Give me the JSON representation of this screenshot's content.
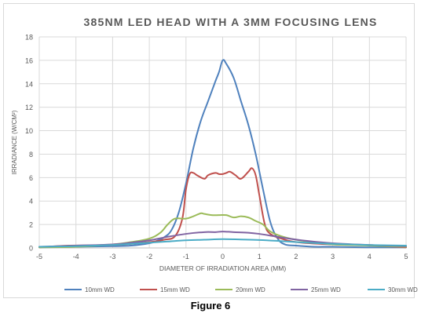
{
  "figure": {
    "caption": "Figure 6"
  },
  "chart_data": {
    "type": "line",
    "title": "385NM LED HEAD WITH A 3MM FOCUSING LENS",
    "xlabel": "DIAMETER OF IRRADIATION AREA (MM)",
    "ylabel": "IRRADIANCE (W/CM²)",
    "xlim": [
      -5,
      5
    ],
    "ylim": [
      0,
      18
    ],
    "xticks": [
      -5,
      -4,
      -3,
      -2,
      -1,
      0,
      1,
      2,
      3,
      4,
      5
    ],
    "yticks": [
      0,
      2,
      4,
      6,
      8,
      10,
      12,
      14,
      16,
      18
    ],
    "grid": true,
    "legend_position": "bottom",
    "series": [
      {
        "name": "10mm WD",
        "color": "#4f81bd",
        "points": [
          [
            -5,
            0.05
          ],
          [
            -4,
            0.1
          ],
          [
            -3,
            0.15
          ],
          [
            -2.5,
            0.2
          ],
          [
            -2,
            0.4
          ],
          [
            -1.8,
            0.6
          ],
          [
            -1.6,
            0.9
          ],
          [
            -1.4,
            1.5
          ],
          [
            -1.2,
            3
          ],
          [
            -1.0,
            5.5
          ],
          [
            -0.8,
            8.5
          ],
          [
            -0.6,
            10.8
          ],
          [
            -0.4,
            12.5
          ],
          [
            -0.2,
            14.2
          ],
          [
            -0.1,
            15.0
          ],
          [
            0,
            16.0
          ],
          [
            0.1,
            15.7
          ],
          [
            0.3,
            14.5
          ],
          [
            0.5,
            12.5
          ],
          [
            0.7,
            10.5
          ],
          [
            0.9,
            8.0
          ],
          [
            1.1,
            5.0
          ],
          [
            1.3,
            2.2
          ],
          [
            1.5,
            0.8
          ],
          [
            1.7,
            0.3
          ],
          [
            2,
            0.2
          ],
          [
            2.5,
            0.1
          ],
          [
            3,
            0.1
          ],
          [
            4,
            0.05
          ],
          [
            5,
            0.05
          ]
        ]
      },
      {
        "name": "15mm WD",
        "color": "#c0504d",
        "points": [
          [
            -5,
            0.05
          ],
          [
            -4.2,
            0.2
          ],
          [
            -3,
            0.25
          ],
          [
            -2,
            0.5
          ],
          [
            -1.6,
            0.7
          ],
          [
            -1.3,
            1.0
          ],
          [
            -1.1,
            2.5
          ],
          [
            -1.0,
            5.0
          ],
          [
            -0.9,
            6.3
          ],
          [
            -0.8,
            6.4
          ],
          [
            -0.7,
            6.2
          ],
          [
            -0.5,
            5.9
          ],
          [
            -0.4,
            6.2
          ],
          [
            -0.2,
            6.4
          ],
          [
            -0.1,
            6.3
          ],
          [
            0,
            6.3
          ],
          [
            0.1,
            6.4
          ],
          [
            0.2,
            6.5
          ],
          [
            0.35,
            6.2
          ],
          [
            0.5,
            5.9
          ],
          [
            0.7,
            6.5
          ],
          [
            0.8,
            6.8
          ],
          [
            0.9,
            6.2
          ],
          [
            1.0,
            4.5
          ],
          [
            1.15,
            2.0
          ],
          [
            1.3,
            1.2
          ],
          [
            1.6,
            0.8
          ],
          [
            2,
            0.5
          ],
          [
            3,
            0.3
          ],
          [
            4,
            0.25
          ],
          [
            4.2,
            0.2
          ],
          [
            5,
            0.05
          ]
        ]
      },
      {
        "name": "20mm WD",
        "color": "#9bbb59",
        "points": [
          [
            -5,
            0.05
          ],
          [
            -4,
            0.1
          ],
          [
            -3,
            0.3
          ],
          [
            -2.5,
            0.5
          ],
          [
            -2,
            0.8
          ],
          [
            -1.7,
            1.3
          ],
          [
            -1.5,
            2.0
          ],
          [
            -1.3,
            2.5
          ],
          [
            -1.0,
            2.5
          ],
          [
            -0.8,
            2.7
          ],
          [
            -0.6,
            2.95
          ],
          [
            -0.5,
            2.9
          ],
          [
            -0.3,
            2.8
          ],
          [
            -0.1,
            2.8
          ],
          [
            0.1,
            2.8
          ],
          [
            0.3,
            2.6
          ],
          [
            0.5,
            2.7
          ],
          [
            0.7,
            2.6
          ],
          [
            0.9,
            2.3
          ],
          [
            1.1,
            2.0
          ],
          [
            1.3,
            1.4
          ],
          [
            1.6,
            1.0
          ],
          [
            2,
            0.7
          ],
          [
            2.5,
            0.5
          ],
          [
            3,
            0.3
          ],
          [
            4,
            0.2
          ],
          [
            5,
            0.1
          ]
        ]
      },
      {
        "name": "25mm WD",
        "color": "#8064a2",
        "points": [
          [
            -5,
            0.1
          ],
          [
            -4,
            0.2
          ],
          [
            -3,
            0.3
          ],
          [
            -2.5,
            0.45
          ],
          [
            -2,
            0.65
          ],
          [
            -1.5,
            0.95
          ],
          [
            -1.0,
            1.2
          ],
          [
            -0.5,
            1.35
          ],
          [
            -0.2,
            1.35
          ],
          [
            0,
            1.4
          ],
          [
            0.3,
            1.35
          ],
          [
            0.7,
            1.3
          ],
          [
            1.0,
            1.2
          ],
          [
            1.4,
            1.0
          ],
          [
            1.8,
            0.8
          ],
          [
            2.3,
            0.6
          ],
          [
            3,
            0.4
          ],
          [
            4,
            0.25
          ],
          [
            5,
            0.15
          ]
        ]
      },
      {
        "name": "30mm WD",
        "color": "#4bacc6",
        "points": [
          [
            -5,
            0.1
          ],
          [
            -4,
            0.15
          ],
          [
            -3,
            0.25
          ],
          [
            -2.5,
            0.35
          ],
          [
            -2,
            0.45
          ],
          [
            -1.5,
            0.55
          ],
          [
            -1.0,
            0.65
          ],
          [
            -0.5,
            0.7
          ],
          [
            0,
            0.75
          ],
          [
            0.5,
            0.72
          ],
          [
            1.0,
            0.68
          ],
          [
            1.5,
            0.6
          ],
          [
            2,
            0.5
          ],
          [
            2.5,
            0.42
          ],
          [
            3,
            0.35
          ],
          [
            4,
            0.25
          ],
          [
            5,
            0.2
          ]
        ]
      }
    ]
  }
}
